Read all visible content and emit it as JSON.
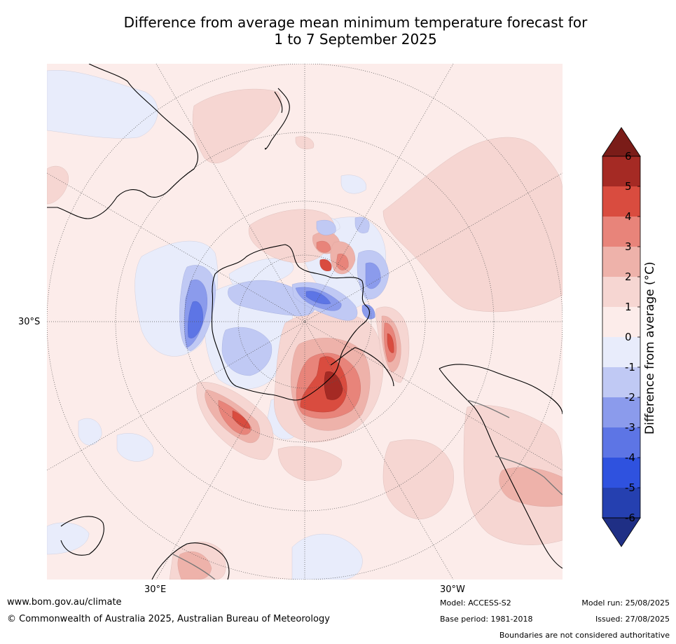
{
  "title": {
    "line1": "Difference from average mean minimum temperature forecast for",
    "line2": "1 to 7 September 2025"
  },
  "map": {
    "projection": "south polar stereographic",
    "lat_labels": [
      "30°S"
    ],
    "lon_labels": [
      "30°E",
      "30°W"
    ]
  },
  "colorbar": {
    "label": "Difference from average (°C)",
    "ticks": [
      "6",
      "5",
      "4",
      "3",
      "2",
      "1",
      "0",
      "-1",
      "-2",
      "-3",
      "-4",
      "-5",
      "-6"
    ],
    "colors": [
      "#7a1c18",
      "#a52a24",
      "#d94c3f",
      "#e8847a",
      "#eeb2aa",
      "#f6d6d2",
      "#fcecea",
      "#e8ecfb",
      "#c0c9f4",
      "#8b9bec",
      "#5d75e5",
      "#2f52df",
      "#2540b0",
      "#1f2f85"
    ]
  },
  "footer": {
    "url": "www.bom.gov.au/climate",
    "copyright": "© Commonwealth of Australia 2025, Australian Bureau of Meteorology",
    "model": "Model: ACCESS-S2",
    "base_period": "Base period: 1981-2018",
    "model_run": "Model run: 25/08/2025",
    "issued": "Issued: 27/08/2025",
    "disclaimer": "Boundaries are not considered authoritative"
  }
}
